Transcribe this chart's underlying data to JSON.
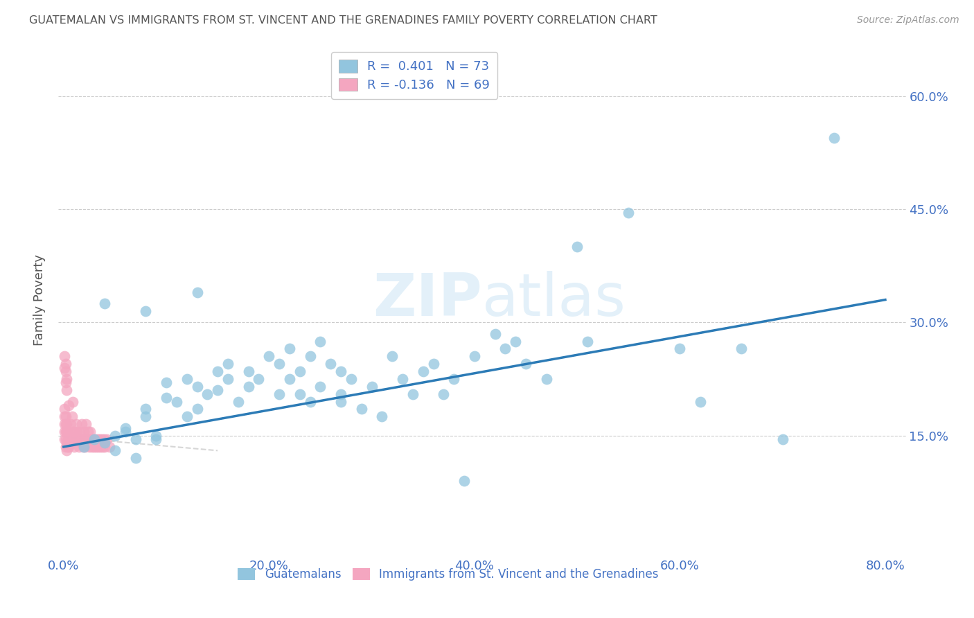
{
  "title": "GUATEMALAN VS IMMIGRANTS FROM ST. VINCENT AND THE GRENADINES FAMILY POVERTY CORRELATION CHART",
  "source": "Source: ZipAtlas.com",
  "ylabel": "Family Poverty",
  "yticks": [
    0.0,
    0.15,
    0.3,
    0.45,
    0.6
  ],
  "ytick_labels": [
    "",
    "15.0%",
    "30.0%",
    "45.0%",
    "60.0%"
  ],
  "xticks": [
    0.0,
    0.2,
    0.4,
    0.6,
    0.8
  ],
  "xlim": [
    -0.005,
    0.82
  ],
  "ylim": [
    -0.01,
    0.67
  ],
  "legend_blue_r": "R =  0.401",
  "legend_blue_n": "N = 73",
  "legend_pink_r": "R = -0.136",
  "legend_pink_n": "N = 69",
  "blue_color": "#92c5de",
  "pink_color": "#f4a6c0",
  "line_blue_color": "#2c7bb6",
  "line_pink_color": "#cccccc",
  "title_color": "#555555",
  "axis_label_color": "#4472c4",
  "watermark_color": "#ddeeff",
  "blue_x": [
    0.02,
    0.03,
    0.04,
    0.05,
    0.05,
    0.06,
    0.06,
    0.07,
    0.07,
    0.08,
    0.08,
    0.09,
    0.09,
    0.1,
    0.1,
    0.11,
    0.12,
    0.12,
    0.13,
    0.13,
    0.14,
    0.15,
    0.15,
    0.16,
    0.16,
    0.17,
    0.18,
    0.18,
    0.19,
    0.2,
    0.21,
    0.21,
    0.22,
    0.22,
    0.23,
    0.23,
    0.24,
    0.24,
    0.25,
    0.25,
    0.26,
    0.27,
    0.27,
    0.28,
    0.29,
    0.3,
    0.31,
    0.32,
    0.33,
    0.34,
    0.35,
    0.36,
    0.37,
    0.38,
    0.39,
    0.4,
    0.42,
    0.43,
    0.44,
    0.45,
    0.47,
    0.5,
    0.51,
    0.55,
    0.6,
    0.62,
    0.66,
    0.7,
    0.75,
    0.04,
    0.08,
    0.13,
    0.27
  ],
  "blue_y": [
    0.135,
    0.145,
    0.14,
    0.13,
    0.15,
    0.155,
    0.16,
    0.12,
    0.145,
    0.175,
    0.185,
    0.145,
    0.15,
    0.2,
    0.22,
    0.195,
    0.225,
    0.175,
    0.215,
    0.185,
    0.205,
    0.235,
    0.21,
    0.225,
    0.245,
    0.195,
    0.215,
    0.235,
    0.225,
    0.255,
    0.205,
    0.245,
    0.265,
    0.225,
    0.205,
    0.235,
    0.255,
    0.195,
    0.275,
    0.215,
    0.245,
    0.205,
    0.235,
    0.225,
    0.185,
    0.215,
    0.175,
    0.255,
    0.225,
    0.205,
    0.235,
    0.245,
    0.205,
    0.225,
    0.09,
    0.255,
    0.285,
    0.265,
    0.275,
    0.245,
    0.225,
    0.4,
    0.275,
    0.445,
    0.265,
    0.195,
    0.265,
    0.145,
    0.545,
    0.325,
    0.315,
    0.34,
    0.195
  ],
  "pink_x": [
    0.001,
    0.001,
    0.001,
    0.001,
    0.001,
    0.002,
    0.002,
    0.002,
    0.002,
    0.002,
    0.003,
    0.003,
    0.003,
    0.003,
    0.004,
    0.004,
    0.004,
    0.005,
    0.005,
    0.005,
    0.006,
    0.006,
    0.007,
    0.007,
    0.008,
    0.008,
    0.009,
    0.009,
    0.01,
    0.01,
    0.01,
    0.012,
    0.012,
    0.013,
    0.014,
    0.015,
    0.015,
    0.016,
    0.016,
    0.017,
    0.018,
    0.018,
    0.019,
    0.019,
    0.02,
    0.02,
    0.021,
    0.022,
    0.023,
    0.024,
    0.025,
    0.025,
    0.026,
    0.027,
    0.028,
    0.029,
    0.03,
    0.031,
    0.032,
    0.033,
    0.034,
    0.035,
    0.036,
    0.037,
    0.038,
    0.039,
    0.04,
    0.042,
    0.045
  ],
  "pink_y": [
    0.145,
    0.155,
    0.165,
    0.175,
    0.185,
    0.135,
    0.145,
    0.155,
    0.165,
    0.175,
    0.13,
    0.14,
    0.155,
    0.165,
    0.145,
    0.135,
    0.155,
    0.135,
    0.145,
    0.19,
    0.15,
    0.145,
    0.14,
    0.165,
    0.145,
    0.175,
    0.155,
    0.195,
    0.135,
    0.145,
    0.155,
    0.145,
    0.165,
    0.155,
    0.145,
    0.135,
    0.145,
    0.155,
    0.145,
    0.145,
    0.145,
    0.165,
    0.145,
    0.135,
    0.155,
    0.145,
    0.135,
    0.165,
    0.145,
    0.155,
    0.135,
    0.145,
    0.155,
    0.145,
    0.135,
    0.145,
    0.135,
    0.145,
    0.135,
    0.145,
    0.135,
    0.145,
    0.135,
    0.145,
    0.135,
    0.145,
    0.135,
    0.145,
    0.135
  ],
  "pink_outlier_x": [
    0.001,
    0.001,
    0.002,
    0.002,
    0.002,
    0.003,
    0.003
  ],
  "pink_outlier_y": [
    0.24,
    0.255,
    0.235,
    0.22,
    0.245,
    0.21,
    0.225
  ]
}
